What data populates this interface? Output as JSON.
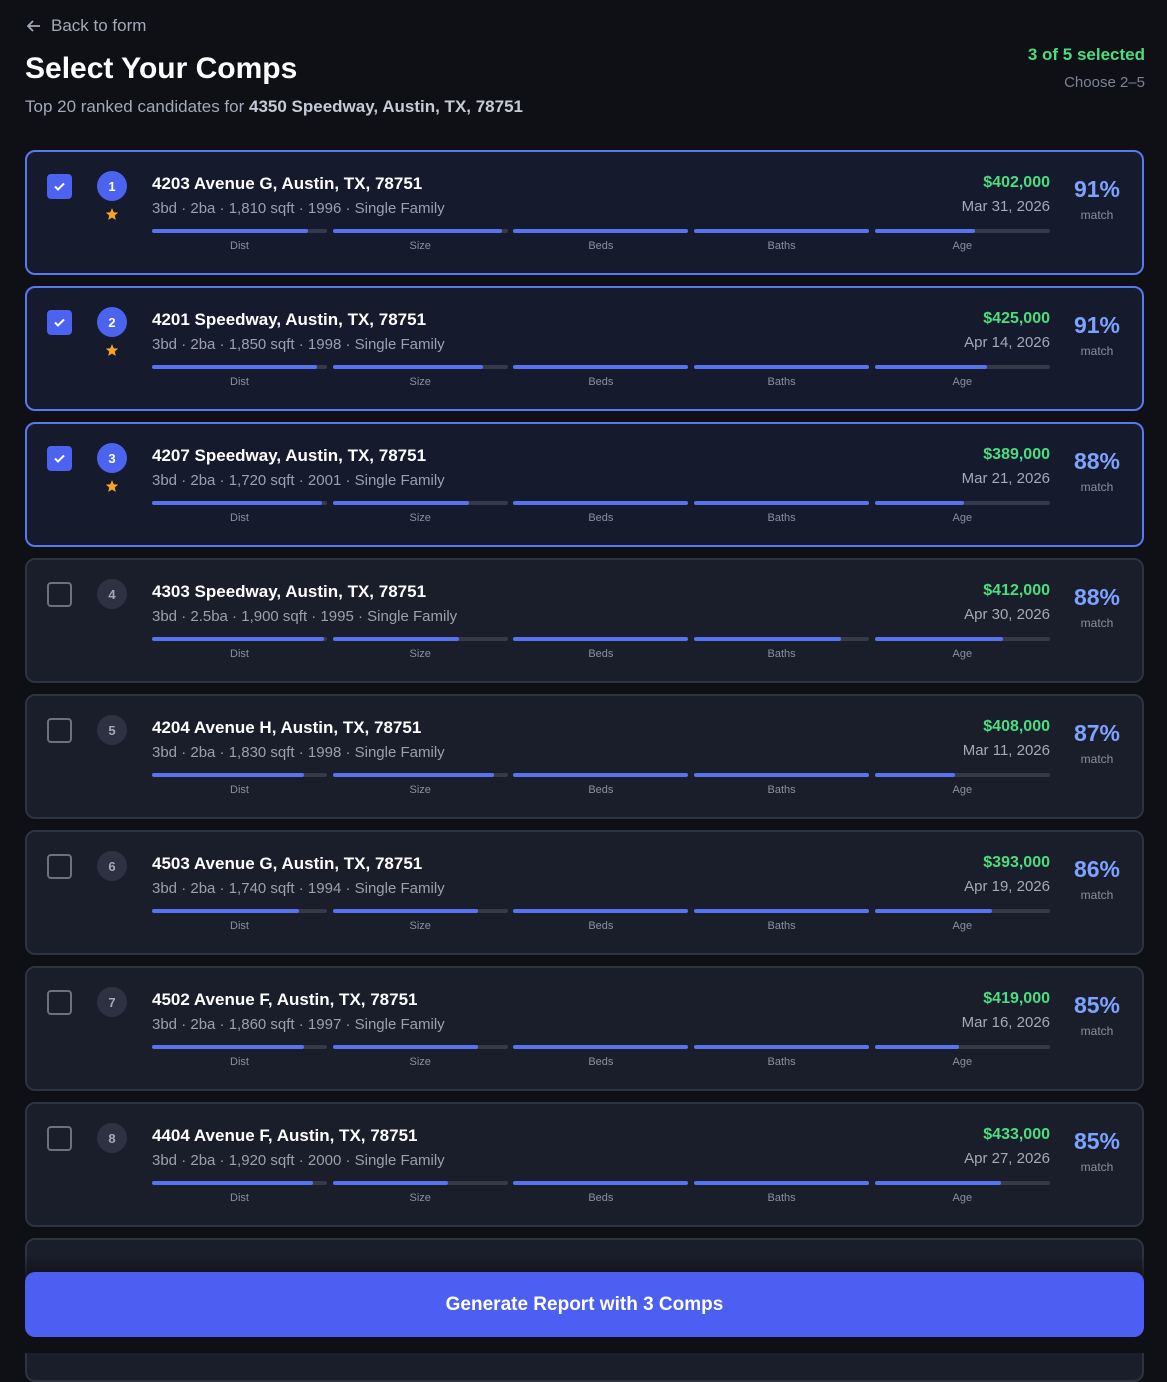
{
  "header": {
    "back": "Back to form",
    "title": "Select Your Comps",
    "subtitle": "Top 20 ranked candidates for ",
    "subject": "4350 Speedway, Austin, TX, 78751",
    "selection": "3 of 5 selected",
    "hint": "Choose 2–5"
  },
  "factor_labels": [
    "Dist",
    "Size",
    "Beds",
    "Baths",
    "Age"
  ],
  "match_label": "match",
  "comps": [
    {
      "rank": 1,
      "selected": true,
      "starred": true,
      "address": "4203 Avenue G, Austin, TX, 78751",
      "details": "3bd · 2ba · 1,810 sqft · 1996 · Single Family",
      "price": "$402,000",
      "date": "Mar 31, 2026",
      "match": "91%",
      "scores": [
        0.89,
        0.97,
        1,
        1,
        0.57
      ]
    },
    {
      "rank": 2,
      "selected": true,
      "starred": true,
      "address": "4201 Speedway, Austin, TX, 78751",
      "details": "3bd · 2ba · 1,850 sqft · 1998 · Single Family",
      "price": "$425,000",
      "date": "Apr 14, 2026",
      "match": "91%",
      "scores": [
        0.94,
        0.86,
        1,
        1,
        0.64
      ]
    },
    {
      "rank": 3,
      "selected": true,
      "starred": true,
      "address": "4207 Speedway, Austin, TX, 78751",
      "details": "3bd · 2ba · 1,720 sqft · 2001 · Single Family",
      "price": "$389,000",
      "date": "Mar 21, 2026",
      "match": "88%",
      "scores": [
        0.97,
        0.78,
        1,
        1,
        0.51
      ]
    },
    {
      "rank": 4,
      "selected": false,
      "starred": false,
      "address": "4303 Speedway, Austin, TX, 78751",
      "details": "3bd · 2.5ba · 1,900 sqft · 1995 · Single Family",
      "price": "$412,000",
      "date": "Apr 30, 2026",
      "match": "88%",
      "scores": [
        0.98,
        0.72,
        1,
        0.84,
        0.73
      ]
    },
    {
      "rank": 5,
      "selected": false,
      "starred": false,
      "address": "4204 Avenue H, Austin, TX, 78751",
      "details": "3bd · 2ba · 1,830 sqft · 1998 · Single Family",
      "price": "$408,000",
      "date": "Mar 11, 2026",
      "match": "87%",
      "scores": [
        0.87,
        0.92,
        1,
        1,
        0.46
      ]
    },
    {
      "rank": 6,
      "selected": false,
      "starred": false,
      "address": "4503 Avenue G, Austin, TX, 78751",
      "details": "3bd · 2ba · 1,740 sqft · 1994 · Single Family",
      "price": "$393,000",
      "date": "Apr 19, 2026",
      "match": "86%",
      "scores": [
        0.84,
        0.83,
        1,
        1,
        0.67
      ]
    },
    {
      "rank": 7,
      "selected": false,
      "starred": false,
      "address": "4502 Avenue F, Austin, TX, 78751",
      "details": "3bd · 2ba · 1,860 sqft · 1997 · Single Family",
      "price": "$419,000",
      "date": "Mar 16, 2026",
      "match": "85%",
      "scores": [
        0.87,
        0.83,
        1,
        1,
        0.48
      ]
    },
    {
      "rank": 8,
      "selected": false,
      "starred": false,
      "address": "4404 Avenue F, Austin, TX, 78751",
      "details": "3bd · 2ba · 1,920 sqft · 2000 · Single Family",
      "price": "$433,000",
      "date": "Apr 27, 2026",
      "match": "85%",
      "scores": [
        0.92,
        0.66,
        1,
        1,
        0.72
      ]
    }
  ],
  "button": "Generate Report with 3 Comps"
}
